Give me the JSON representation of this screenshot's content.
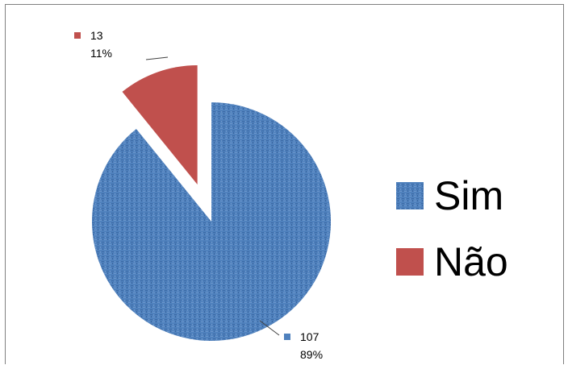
{
  "chart_data": {
    "type": "pie",
    "title": "",
    "series": [
      {
        "name": "",
        "slices": [
          {
            "label": "Sim",
            "value": 107,
            "percent": "89%",
            "color": "#4f81bd",
            "exploded": false
          },
          {
            "label": "Não",
            "value": 13,
            "percent": "11%",
            "color": "#c0504d",
            "exploded": true
          }
        ]
      }
    ],
    "legend": {
      "placement": "right",
      "items": [
        "Sim",
        "Não"
      ]
    },
    "data_labels": [
      {
        "value": "107",
        "percent": "89%"
      },
      {
        "value": "13",
        "percent": "11%"
      }
    ],
    "pattern": "textured"
  }
}
